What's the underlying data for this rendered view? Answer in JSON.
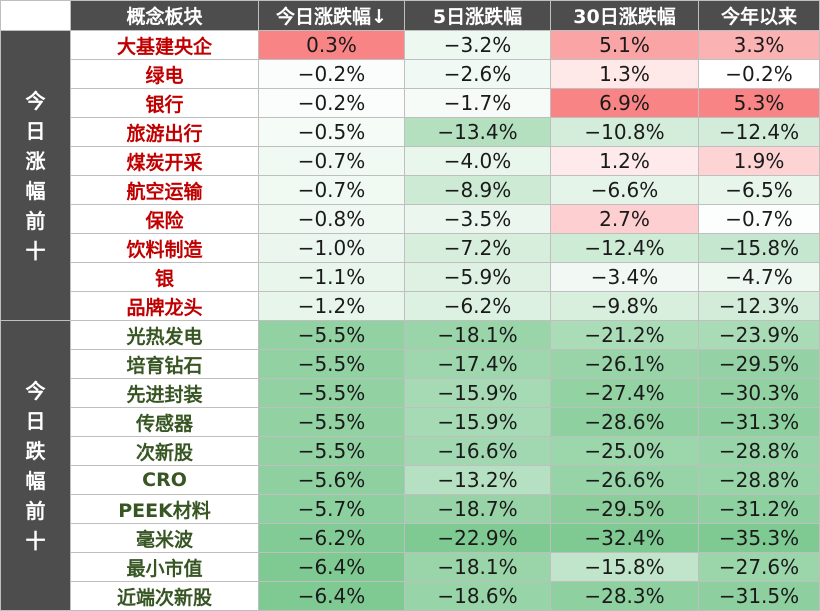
{
  "header": [
    "概念板块",
    "今日涨跌幅↓",
    "5日涨跌幅",
    "30日涨跌幅",
    "今年以来"
  ],
  "colors": {
    "header_bg": "#4d4d4d",
    "header_text": "#ffffff",
    "top_name": "#c00000",
    "bottom_name": "#375623",
    "positive": "#f8696b",
    "negative": "#63be7b"
  },
  "groups": [
    {
      "label": "今日涨幅前十",
      "name_color": "#c00000",
      "rows": [
        {
          "name": "大基建央企",
          "values": [
            "0.3%",
            "−3.2%",
            "5.1%",
            "3.3%"
          ]
        },
        {
          "name": "绿电",
          "values": [
            "−0.2%",
            "−2.6%",
            "1.3%",
            "−0.2%"
          ]
        },
        {
          "name": "银行",
          "values": [
            "−0.2%",
            "−1.7%",
            "6.9%",
            "5.3%"
          ]
        },
        {
          "name": "旅游出行",
          "values": [
            "−0.5%",
            "−13.4%",
            "−10.8%",
            "−12.4%"
          ]
        },
        {
          "name": "煤炭开采",
          "values": [
            "−0.7%",
            "−4.0%",
            "1.2%",
            "1.9%"
          ]
        },
        {
          "name": "航空运输",
          "values": [
            "−0.7%",
            "−8.9%",
            "−6.6%",
            "−6.5%"
          ]
        },
        {
          "name": "保险",
          "values": [
            "−0.8%",
            "−3.5%",
            "2.7%",
            "−0.7%"
          ]
        },
        {
          "name": "饮料制造",
          "values": [
            "−1.0%",
            "−7.2%",
            "−12.4%",
            "−15.8%"
          ]
        },
        {
          "name": "银",
          "values": [
            "−1.1%",
            "−5.9%",
            "−3.4%",
            "−4.7%"
          ]
        },
        {
          "name": "品牌龙头",
          "values": [
            "−1.2%",
            "−6.2%",
            "−9.8%",
            "−12.3%"
          ]
        }
      ]
    },
    {
      "label": "今日跌幅前十",
      "name_color": "#375623",
      "rows": [
        {
          "name": "光热发电",
          "values": [
            "−5.5%",
            "−18.1%",
            "−21.2%",
            "−23.9%"
          ]
        },
        {
          "name": "培育钻石",
          "values": [
            "−5.5%",
            "−17.4%",
            "−26.1%",
            "−29.5%"
          ]
        },
        {
          "name": "先进封装",
          "values": [
            "−5.5%",
            "−15.9%",
            "−27.4%",
            "−30.3%"
          ]
        },
        {
          "name": "传感器",
          "values": [
            "−5.5%",
            "−15.9%",
            "−28.6%",
            "−31.3%"
          ]
        },
        {
          "name": "次新股",
          "values": [
            "−5.5%",
            "−16.6%",
            "−25.0%",
            "−28.8%"
          ]
        },
        {
          "name": "CRO",
          "values": [
            "−5.6%",
            "−13.2%",
            "−26.6%",
            "−28.8%"
          ]
        },
        {
          "name": "PEEK材料",
          "values": [
            "−5.7%",
            "−18.7%",
            "−29.5%",
            "−31.2%"
          ]
        },
        {
          "name": "毫米波",
          "values": [
            "−6.2%",
            "−22.9%",
            "−32.4%",
            "−35.3%"
          ]
        },
        {
          "name": "最小市值",
          "values": [
            "−6.4%",
            "−18.1%",
            "−15.8%",
            "−27.6%"
          ]
        },
        {
          "name": "近端次新股",
          "values": [
            "−6.4%",
            "−18.6%",
            "−28.3%",
            "−31.5%"
          ]
        }
      ]
    }
  ],
  "chart_data": {
    "type": "table",
    "columns": [
      "概念板块",
      "今日涨跌幅↓",
      "5日涨跌幅",
      "30日涨跌幅",
      "今年以来"
    ],
    "row_groups": [
      "今日涨幅前十",
      "今日跌幅前十"
    ],
    "rows": [
      [
        "大基建央企",
        0.3,
        -3.2,
        5.1,
        3.3
      ],
      [
        "绿电",
        -0.2,
        -2.6,
        1.3,
        -0.2
      ],
      [
        "银行",
        -0.2,
        -1.7,
        6.9,
        5.3
      ],
      [
        "旅游出行",
        -0.5,
        -13.4,
        -10.8,
        -12.4
      ],
      [
        "煤炭开采",
        -0.7,
        -4.0,
        1.2,
        1.9
      ],
      [
        "航空运输",
        -0.7,
        -8.9,
        -6.6,
        -6.5
      ],
      [
        "保险",
        -0.8,
        -3.5,
        2.7,
        -0.7
      ],
      [
        "饮料制造",
        -1.0,
        -7.2,
        -12.4,
        -15.8
      ],
      [
        "银",
        -1.1,
        -5.9,
        -3.4,
        -4.7
      ],
      [
        "品牌龙头",
        -1.2,
        -6.2,
        -9.8,
        -12.3
      ],
      [
        "光热发电",
        -5.5,
        -18.1,
        -21.2,
        -23.9
      ],
      [
        "培育钻石",
        -5.5,
        -17.4,
        -26.1,
        -29.5
      ],
      [
        "先进封装",
        -5.5,
        -15.9,
        -27.4,
        -30.3
      ],
      [
        "传感器",
        -5.5,
        -15.9,
        -28.6,
        -31.3
      ],
      [
        "次新股",
        -5.5,
        -16.6,
        -25.0,
        -28.8
      ],
      [
        "CRO",
        -5.6,
        -13.2,
        -26.6,
        -28.8
      ],
      [
        "PEEK材料",
        -5.7,
        -18.7,
        -29.5,
        -31.2
      ],
      [
        "毫米波",
        -6.2,
        -22.9,
        -32.4,
        -35.3
      ],
      [
        "最小市值",
        -6.4,
        -18.1,
        -15.8,
        -27.6
      ],
      [
        "近端次新股",
        -6.4,
        -18.6,
        -28.3,
        -31.5
      ]
    ]
  }
}
